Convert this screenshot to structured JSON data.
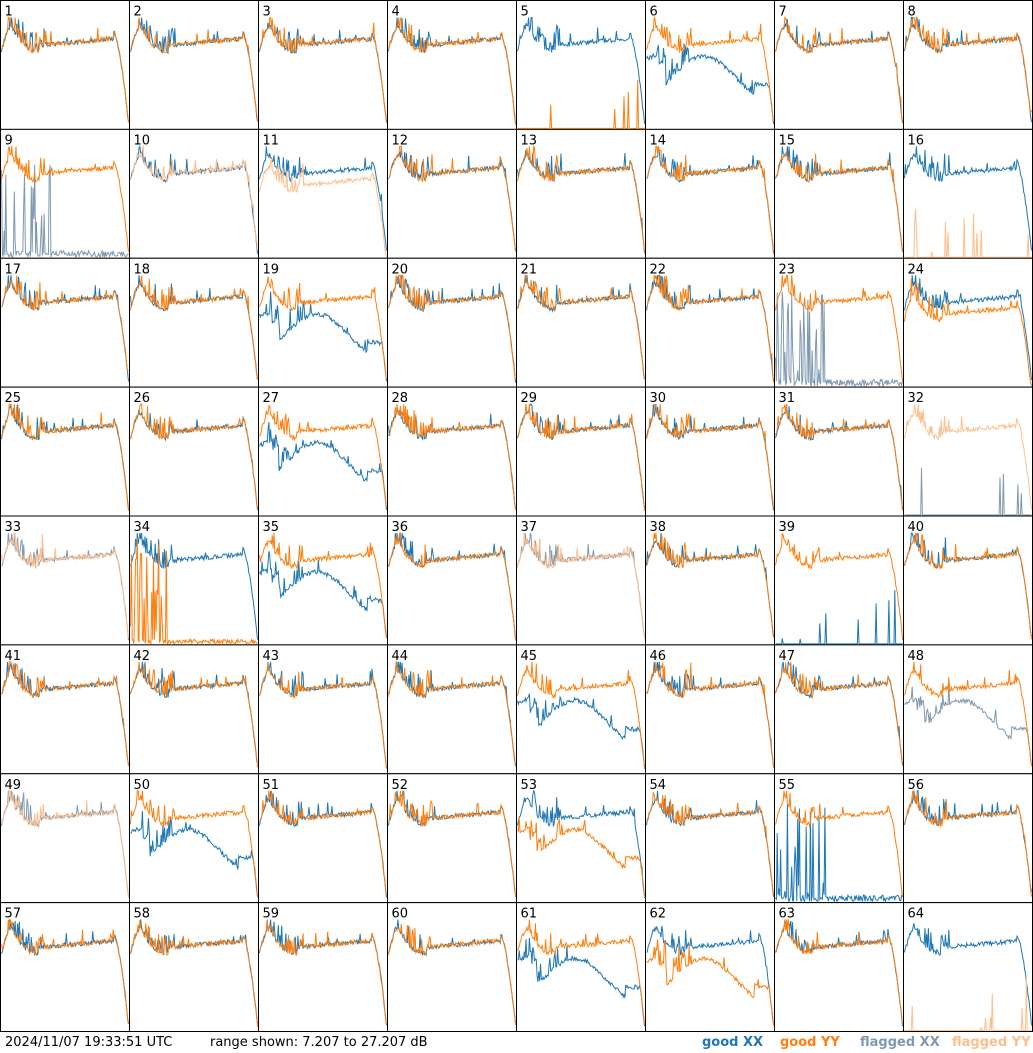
{
  "timestamp": "2024/11/07 19:33:51 UTC",
  "range_label": "range shown: 7.207 to 27.207 dB",
  "legend": {
    "good_xx": "good XX",
    "good_yy": "good YY",
    "flagged_xx": "flagged XX",
    "flagged_yy": "flagged YY"
  },
  "colors": {
    "good_xx": "#1f77b4",
    "good_yy": "#ff7f0e",
    "flagged_xx": "#7f99b1",
    "flagged_yy": "#ffbf8c",
    "frame": "#000000"
  },
  "chart_data": {
    "type": "line",
    "grid": "8x8 small multiples",
    "ylim": [
      7.207,
      27.207
    ],
    "yunit": "dB",
    "panels": [
      {
        "id": "1",
        "xx": "good",
        "yy": "good",
        "shape": "standard"
      },
      {
        "id": "2",
        "xx": "good",
        "yy": "good",
        "shape": "standard"
      },
      {
        "id": "3",
        "xx": "good",
        "yy": "good",
        "shape": "standard"
      },
      {
        "id": "4",
        "xx": "good",
        "yy": "good",
        "shape": "standard"
      },
      {
        "id": "5",
        "xx": "good",
        "yy": "good",
        "shape": "yy-dead"
      },
      {
        "id": "6",
        "xx": "good",
        "yy": "good",
        "shape": "xx-low-dip"
      },
      {
        "id": "7",
        "xx": "good",
        "yy": "good",
        "shape": "standard"
      },
      {
        "id": "8",
        "xx": "good",
        "yy": "good",
        "shape": "standard"
      },
      {
        "id": "9",
        "xx": "flagged",
        "yy": "good",
        "shape": "xx-dead-spiky"
      },
      {
        "id": "10",
        "xx": "good",
        "yy": "flagged",
        "shape": "standard"
      },
      {
        "id": "11",
        "xx": "good",
        "yy": "flagged",
        "shape": "yy-low"
      },
      {
        "id": "12",
        "xx": "good",
        "yy": "good",
        "shape": "standard"
      },
      {
        "id": "13",
        "xx": "good",
        "yy": "good",
        "shape": "standard"
      },
      {
        "id": "14",
        "xx": "good",
        "yy": "good",
        "shape": "standard"
      },
      {
        "id": "15",
        "xx": "good",
        "yy": "good",
        "shape": "standard"
      },
      {
        "id": "16",
        "xx": "good",
        "yy": "flagged",
        "shape": "yy-dead"
      },
      {
        "id": "17",
        "xx": "good",
        "yy": "good",
        "shape": "standard"
      },
      {
        "id": "18",
        "xx": "good",
        "yy": "good",
        "shape": "standard"
      },
      {
        "id": "19",
        "xx": "good",
        "yy": "good",
        "shape": "xx-low-dip"
      },
      {
        "id": "20",
        "xx": "good",
        "yy": "good",
        "shape": "standard"
      },
      {
        "id": "21",
        "xx": "good",
        "yy": "good",
        "shape": "standard"
      },
      {
        "id": "22",
        "xx": "good",
        "yy": "good",
        "shape": "standard"
      },
      {
        "id": "23",
        "xx": "flagged",
        "yy": "good",
        "shape": "xx-dead-spiky"
      },
      {
        "id": "24",
        "xx": "good",
        "yy": "good",
        "shape": "yy-low"
      },
      {
        "id": "25",
        "xx": "good",
        "yy": "good",
        "shape": "standard"
      },
      {
        "id": "26",
        "xx": "good",
        "yy": "good",
        "shape": "standard"
      },
      {
        "id": "27",
        "xx": "good",
        "yy": "good",
        "shape": "xx-low-dip"
      },
      {
        "id": "28",
        "xx": "good",
        "yy": "good",
        "shape": "standard"
      },
      {
        "id": "29",
        "xx": "good",
        "yy": "good",
        "shape": "standard"
      },
      {
        "id": "30",
        "xx": "good",
        "yy": "good",
        "shape": "standard"
      },
      {
        "id": "31",
        "xx": "good",
        "yy": "good",
        "shape": "standard"
      },
      {
        "id": "32",
        "xx": "flagged",
        "yy": "flagged",
        "shape": "xx-dead"
      },
      {
        "id": "33",
        "xx": "flagged",
        "yy": "flagged",
        "shape": "standard"
      },
      {
        "id": "34",
        "xx": "good",
        "yy": "good",
        "shape": "yy-dead-spiky"
      },
      {
        "id": "35",
        "xx": "good",
        "yy": "good",
        "shape": "xx-low-dip"
      },
      {
        "id": "36",
        "xx": "good",
        "yy": "good",
        "shape": "standard"
      },
      {
        "id": "37",
        "xx": "flagged",
        "yy": "flagged",
        "shape": "standard"
      },
      {
        "id": "38",
        "xx": "good",
        "yy": "good",
        "shape": "standard"
      },
      {
        "id": "39",
        "xx": "good",
        "yy": "good",
        "shape": "xx-dead"
      },
      {
        "id": "40",
        "xx": "good",
        "yy": "good",
        "shape": "standard"
      },
      {
        "id": "41",
        "xx": "good",
        "yy": "good",
        "shape": "standard"
      },
      {
        "id": "42",
        "xx": "good",
        "yy": "good",
        "shape": "standard"
      },
      {
        "id": "43",
        "xx": "good",
        "yy": "good",
        "shape": "standard"
      },
      {
        "id": "44",
        "xx": "good",
        "yy": "good",
        "shape": "standard"
      },
      {
        "id": "45",
        "xx": "good",
        "yy": "good",
        "shape": "xx-low-dip"
      },
      {
        "id": "46",
        "xx": "good",
        "yy": "good",
        "shape": "standard"
      },
      {
        "id": "47",
        "xx": "good",
        "yy": "good",
        "shape": "standard"
      },
      {
        "id": "48",
        "xx": "flagged",
        "yy": "good",
        "shape": "xx-low-dip"
      },
      {
        "id": "49",
        "xx": "flagged",
        "yy": "flagged",
        "shape": "standard"
      },
      {
        "id": "50",
        "xx": "good",
        "yy": "good",
        "shape": "xx-low-dip"
      },
      {
        "id": "51",
        "xx": "good",
        "yy": "good",
        "shape": "standard"
      },
      {
        "id": "52",
        "xx": "good",
        "yy": "good",
        "shape": "standard"
      },
      {
        "id": "53",
        "xx": "good",
        "yy": "good",
        "shape": "yy-low-dip"
      },
      {
        "id": "54",
        "xx": "good",
        "yy": "good",
        "shape": "standard"
      },
      {
        "id": "55",
        "xx": "good",
        "yy": "good",
        "shape": "xx-dead-spiky"
      },
      {
        "id": "56",
        "xx": "good",
        "yy": "good",
        "shape": "standard"
      },
      {
        "id": "57",
        "xx": "good",
        "yy": "good",
        "shape": "standard"
      },
      {
        "id": "58",
        "xx": "good",
        "yy": "good",
        "shape": "standard"
      },
      {
        "id": "59",
        "xx": "good",
        "yy": "good",
        "shape": "standard"
      },
      {
        "id": "60",
        "xx": "good",
        "yy": "good",
        "shape": "standard"
      },
      {
        "id": "61",
        "xx": "good",
        "yy": "good",
        "shape": "xx-low-dip"
      },
      {
        "id": "62",
        "xx": "good",
        "yy": "good",
        "shape": "yy-low-dip"
      },
      {
        "id": "63",
        "xx": "good",
        "yy": "good",
        "shape": "standard"
      },
      {
        "id": "64",
        "xx": "good",
        "yy": "flagged",
        "shape": "yy-dead"
      }
    ]
  }
}
